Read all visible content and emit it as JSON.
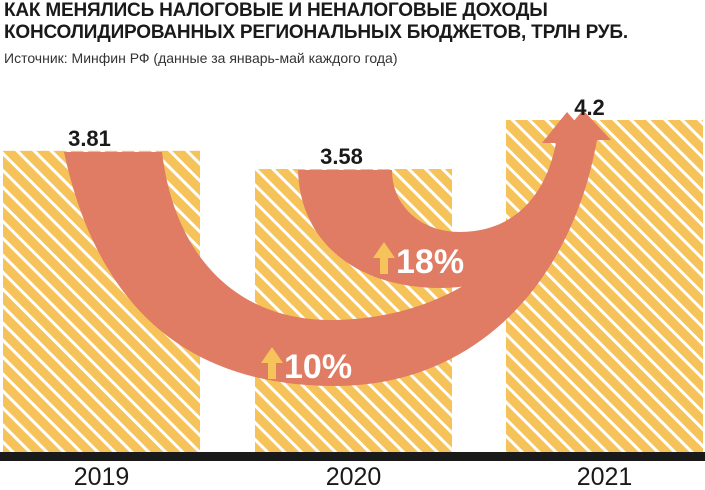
{
  "header": {
    "title_line1": "КАК МЕНЯЛИСЬ НАЛОГОВЫЕ И НЕНАЛОГОВЫЕ ДОХОДЫ",
    "title_line2": "КОНСОЛИДИРОВАННЫХ РЕГИОНАЛЬНЫХ БЮДЖЕТОВ, ТРЛН РУБ.",
    "source": "Источник: Минфин РФ (данные за январь-май каждого года)"
  },
  "colors": {
    "bar": "#f6c35a",
    "hatch": "#ffffff",
    "arrow": "#e07b64",
    "arrow_label": "#ffffff",
    "arrow_up": "#f6c35a",
    "baseline": "#1a1a1a",
    "text": "#1a1a1a"
  },
  "chart_data": {
    "type": "bar",
    "categories": [
      "2019",
      "2020",
      "2021"
    ],
    "values": [
      3.81,
      3.58,
      4.2
    ],
    "value_labels": [
      "3.81",
      "3.58",
      "4.2"
    ],
    "unit": "трлн руб.",
    "ylim": [
      0,
      4.2
    ],
    "grid": false,
    "legend": "none",
    "annotations": [
      {
        "from": "2019",
        "to": "2021",
        "label": "10%",
        "direction": "up"
      },
      {
        "from": "2020",
        "to": "2021",
        "label": "18%",
        "direction": "up"
      }
    ]
  }
}
